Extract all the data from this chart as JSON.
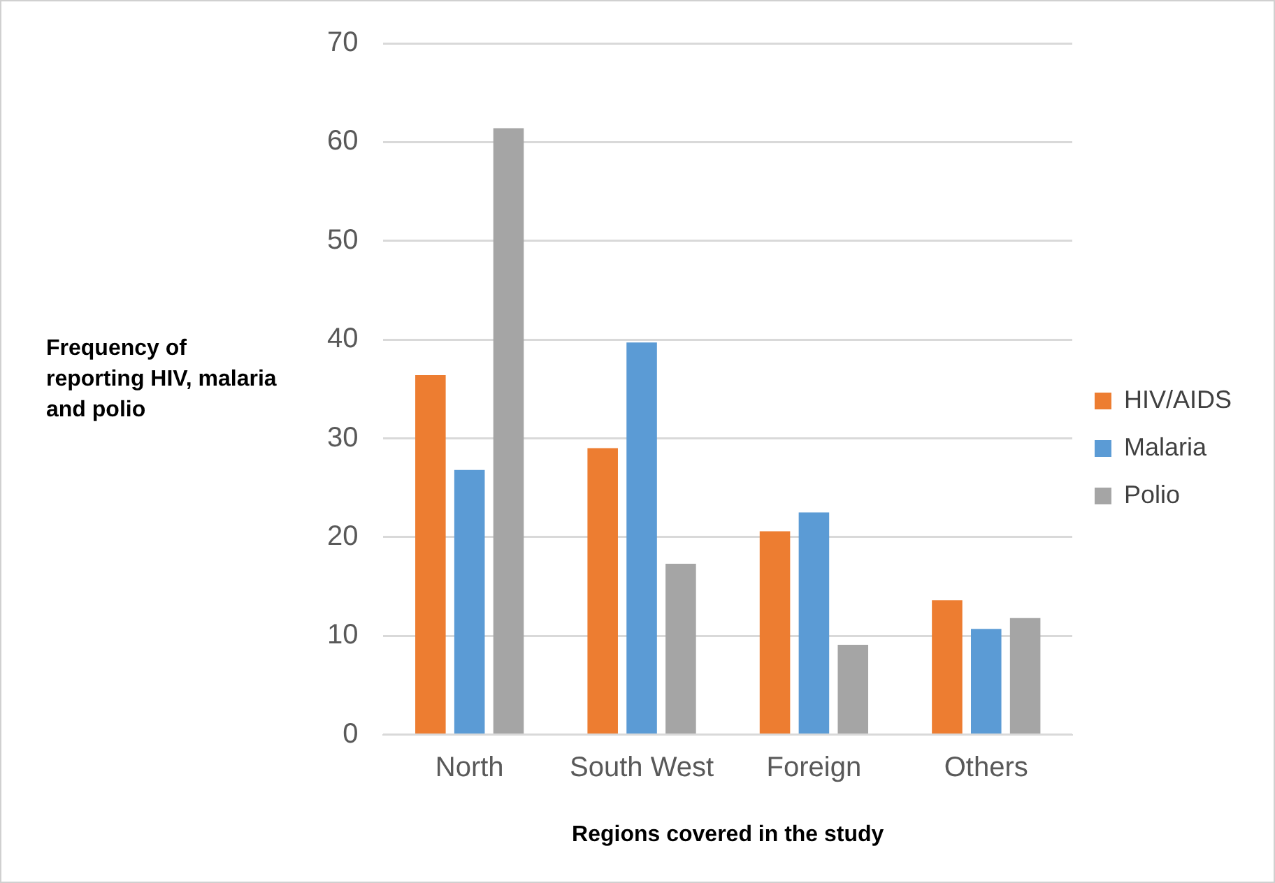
{
  "chart_data": {
    "type": "bar",
    "xlabel": "Regions covered in the study",
    "ylabel": "Frequency of reporting HIV, malaria and polio",
    "categories": [
      "North",
      "South West",
      "Foreign",
      "Others"
    ],
    "series": [
      {
        "name": "HIV/AIDS",
        "color": "#ed7d31",
        "values": [
          36.4,
          29.0,
          20.6,
          13.6
        ]
      },
      {
        "name": "Malaria",
        "color": "#5b9bd5",
        "values": [
          26.8,
          39.7,
          22.5,
          10.7
        ]
      },
      {
        "name": "Polio",
        "color": "#a5a5a5",
        "values": [
          61.4,
          17.3,
          9.1,
          11.8
        ]
      }
    ],
    "ylim": [
      0,
      70
    ],
    "yticks": [
      0,
      10,
      20,
      30,
      40,
      50,
      60,
      70
    ],
    "grid": "y",
    "legend": "right"
  }
}
